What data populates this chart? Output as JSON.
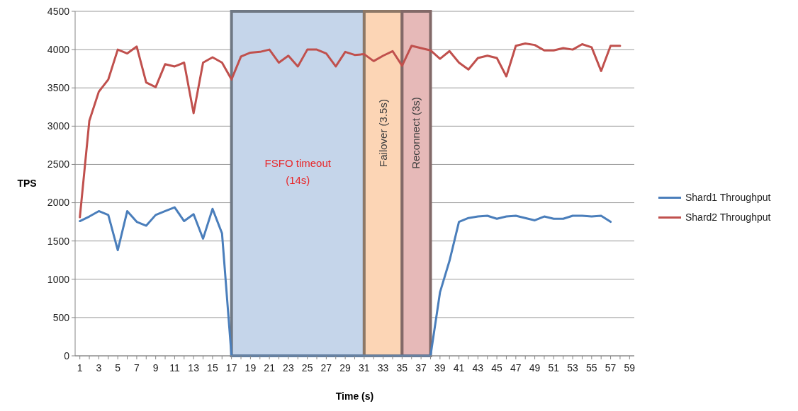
{
  "chart_data": {
    "type": "line",
    "xlabel": "Time (s)",
    "ylabel": "TPS",
    "x": [
      1,
      2,
      3,
      4,
      5,
      6,
      7,
      8,
      9,
      10,
      11,
      12,
      13,
      14,
      15,
      16,
      17,
      18,
      19,
      20,
      21,
      22,
      23,
      24,
      25,
      26,
      27,
      28,
      29,
      30,
      31,
      32,
      33,
      34,
      35,
      36,
      37,
      38,
      39,
      40,
      41,
      42,
      43,
      44,
      45,
      46,
      47,
      48,
      49,
      50,
      51,
      52,
      53,
      54,
      55,
      56,
      57,
      58
    ],
    "xlim": [
      0.5,
      59.5
    ],
    "xticks": [
      1,
      3,
      5,
      7,
      9,
      11,
      13,
      15,
      17,
      19,
      21,
      23,
      25,
      27,
      29,
      31,
      33,
      35,
      37,
      39,
      41,
      43,
      45,
      47,
      49,
      51,
      53,
      55,
      57,
      59
    ],
    "ylim": [
      0,
      4500
    ],
    "yticks": [
      0,
      500,
      1000,
      1500,
      2000,
      2500,
      3000,
      3500,
      4000,
      4500
    ],
    "series": [
      {
        "name": "Shard1 Throughput",
        "color": "#4a7ebb",
        "values": [
          1760,
          1820,
          1890,
          1840,
          1380,
          1890,
          1750,
          1700,
          1840,
          1890,
          1940,
          1760,
          1850,
          1530,
          1920,
          1600,
          0,
          0,
          0,
          0,
          0,
          0,
          0,
          0,
          0,
          0,
          0,
          0,
          0,
          0,
          0,
          0,
          0,
          0,
          0,
          0,
          0,
          0,
          830,
          1240,
          1750,
          1800,
          1820,
          1830,
          1790,
          1820,
          1830,
          1800,
          1770,
          1820,
          1790,
          1790,
          1830,
          1830,
          1820,
          1830,
          1750,
          null
        ]
      },
      {
        "name": "Shard2 Throughput",
        "color": "#c0504d",
        "values": [
          1810,
          3070,
          3450,
          3610,
          4000,
          3950,
          4040,
          3570,
          3510,
          3810,
          3780,
          3830,
          3170,
          3830,
          3900,
          3830,
          3610,
          3910,
          3960,
          3970,
          4000,
          3830,
          3920,
          3780,
          4000,
          4000,
          3950,
          3780,
          3970,
          3930,
          3940,
          3850,
          3920,
          3980,
          3790,
          4050,
          4020,
          3990,
          3880,
          3980,
          3830,
          3740,
          3890,
          3920,
          3890,
          3650,
          4050,
          4080,
          4060,
          3990,
          3990,
          4020,
          4000,
          4070,
          4030,
          3720,
          4050,
          4050
        ]
      }
    ],
    "bands": [
      {
        "axis": "x",
        "from": 17,
        "to": 31,
        "label": "FSFO timeout\n(14s)",
        "color": "#c5d5ea"
      },
      {
        "axis": "x",
        "from": 31,
        "to": 35,
        "label": "Failover (3.5s)",
        "color": "#fcd5b5"
      },
      {
        "axis": "x",
        "from": 35,
        "to": 38,
        "label": "Reconnect (3s)",
        "color": "#e6b9b8"
      }
    ],
    "grid": "y",
    "legend": "right",
    "marker": "none",
    "line_style": "solid"
  }
}
